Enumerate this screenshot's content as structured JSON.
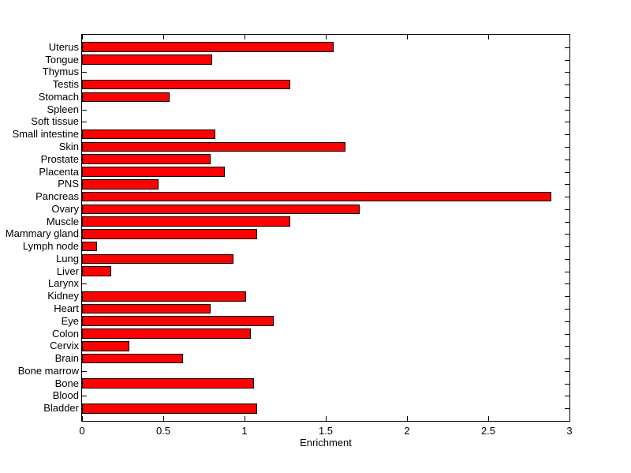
{
  "figure": {
    "background": "#FFFFFF"
  },
  "chart_data": {
    "type": "bar",
    "orientation": "horizontal",
    "title": "",
    "xlabel": "Enrichment",
    "ylabel": "",
    "xlim": [
      0,
      3
    ],
    "x_ticks": [
      0,
      0.5,
      1,
      1.5,
      2,
      2.5,
      3
    ],
    "x_tick_labels": [
      "0",
      "0.5",
      "1",
      "1.5",
      "2",
      "2.5",
      "3"
    ],
    "grid": false,
    "legend": "none",
    "bar_color": "#FF0000",
    "bar_edge_color": "#000000",
    "axis_color": "#000000",
    "categories": [
      "Uterus",
      "Tongue",
      "Thymus",
      "Testis",
      "Stomach",
      "Spleen",
      "Soft tissue",
      "Small intestine",
      "Skin",
      "Prostate",
      "Placenta",
      "PNS",
      "Pancreas",
      "Ovary",
      "Muscle",
      "Mammary gland",
      "Lymph node",
      "Lung",
      "Liver",
      "Larynx",
      "Kidney",
      "Heart",
      "Eye",
      "Colon",
      "Cervix",
      "Brain",
      "Bone marrow",
      "Bone",
      "Blood",
      "Bladder"
    ],
    "values": [
      1.55,
      0.8,
      0,
      1.28,
      0.54,
      0,
      0,
      0.82,
      1.62,
      0.79,
      0.88,
      0.47,
      2.89,
      1.71,
      1.28,
      1.08,
      0.09,
      0.93,
      0.18,
      0,
      1.01,
      0.79,
      1.18,
      1.04,
      0.29,
      0.62,
      0,
      1.06,
      0,
      1.08
    ]
  }
}
